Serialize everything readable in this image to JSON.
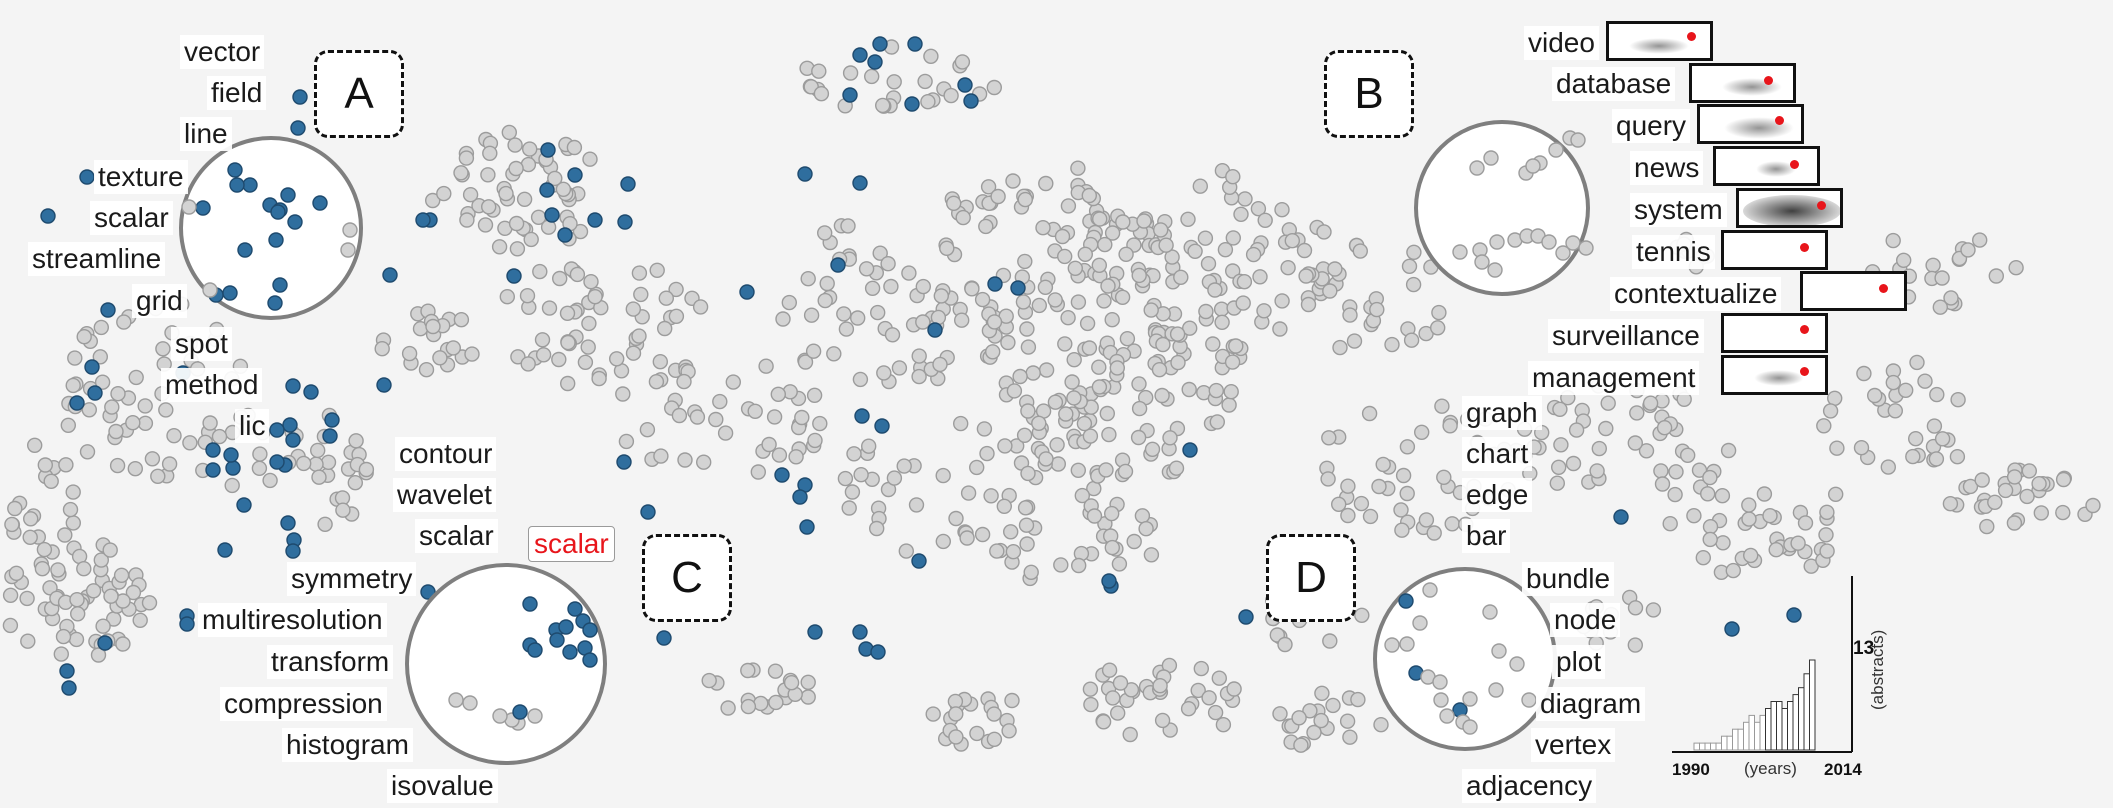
{
  "colors": {
    "background": "#f4f4f4",
    "point_default": "#d3d3d3",
    "point_stroke": "#9c9c9c",
    "point_highlight": "#2f6e9e",
    "lens_stroke": "#7f7f7f",
    "highlight_text": "#e8151b"
  },
  "region_tags": [
    "A",
    "B",
    "C",
    "D"
  ],
  "lens_A": {
    "words_top": [
      "vector",
      "field",
      "line"
    ],
    "words_side": [
      "texture",
      "scalar",
      "streamline",
      "grid"
    ],
    "words_bottom": [
      "spot",
      "method",
      "lic"
    ]
  },
  "lens_B": {
    "words": [
      "video",
      "database",
      "query",
      "news",
      "system",
      "tennis",
      "contextualize",
      "surveillance",
      "management"
    ]
  },
  "lens_C": {
    "words_top": [
      "contour",
      "wavelet",
      "scalar"
    ],
    "highlight_word": "scalar",
    "words_side": [
      "symmetry",
      "multiresolution",
      "transform",
      "compression",
      "histogram",
      "isovalue"
    ]
  },
  "lens_D": {
    "words_top": [
      "graph",
      "chart",
      "edge",
      "bar"
    ],
    "words_side": [
      "bundle",
      "node",
      "plot",
      "diagram",
      "vertex",
      "adjacency"
    ]
  },
  "histogram": {
    "x_start": "1990",
    "x_end": "2014",
    "x_unit": "(years)",
    "y_max": "13",
    "y_unit": "(abstracts)"
  }
}
